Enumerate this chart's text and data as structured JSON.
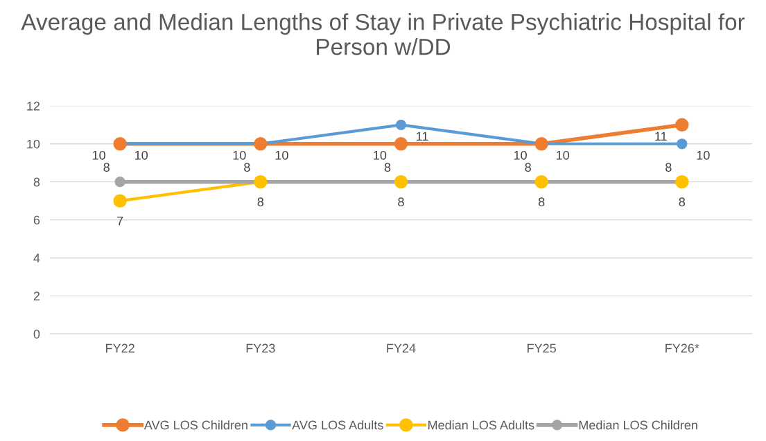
{
  "chart_data": {
    "type": "line",
    "title": "Average and Median Lengths of Stay in Private Psychiatric Hospital for Person w/DD",
    "categories": [
      "FY22",
      "FY23",
      "FY24",
      "FY25",
      "FY26*"
    ],
    "series": [
      {
        "name": "AVG LOS Children",
        "color": "#ed7d31",
        "values": [
          10,
          10,
          10,
          10,
          11
        ]
      },
      {
        "name": "AVG LOS Adults",
        "color": "#5b9bd5",
        "values": [
          10,
          10,
          11,
          10,
          10
        ]
      },
      {
        "name": "Median LOS Adults",
        "color": "#ffc000",
        "values": [
          7,
          8,
          8,
          8,
          8
        ]
      },
      {
        "name": "Median LOS Children",
        "color": "#a5a5a5",
        "values": [
          8,
          8,
          8,
          8,
          8
        ]
      }
    ],
    "ylim": [
      0,
      12
    ],
    "yticks": [
      0,
      2,
      4,
      6,
      8,
      10,
      12
    ],
    "grid": "y",
    "legend": "bottom",
    "marker": "circle",
    "line_style": "solid",
    "data_labels": true
  }
}
